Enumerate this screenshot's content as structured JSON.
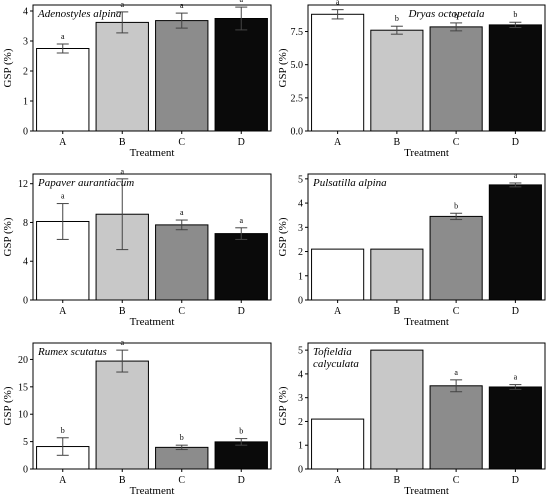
{
  "figure": {
    "colors": {
      "A": "#ffffff",
      "B": "#c8c8c8",
      "C": "#8c8c8c",
      "D": "#0a0a0a"
    }
  },
  "chart_data": [
    {
      "type": "bar",
      "title": "Adenostyles alpina",
      "categories": [
        "A",
        "B",
        "C",
        "D"
      ],
      "values": [
        2.75,
        3.62,
        3.68,
        3.75
      ],
      "errors": [
        0.15,
        0.35,
        0.25,
        0.38
      ],
      "significance": [
        "a",
        "a",
        "a",
        "a"
      ],
      "xlabel": "Treatment",
      "ylabel": "GSP (%)",
      "ylim": [
        0,
        4.2
      ],
      "yticks": [
        0,
        1,
        2,
        3,
        4
      ],
      "legend": "none"
    },
    {
      "type": "bar",
      "title": "Dryas octopetala",
      "categories": [
        "A",
        "B",
        "C",
        "D"
      ],
      "values": [
        8.8,
        7.6,
        7.85,
        8.0
      ],
      "errors": [
        0.35,
        0.3,
        0.3,
        0.2
      ],
      "significance": [
        "a",
        "b",
        "b",
        "b"
      ],
      "xlabel": "Treatment",
      "ylabel": "GSP (%)",
      "ylim": [
        0,
        9.5
      ],
      "yticks": [
        0,
        2.5,
        5.0,
        7.5
      ],
      "yticklabels": [
        "0.0",
        "2.5",
        "5.0",
        "7.5"
      ],
      "legend": "none"
    },
    {
      "type": "bar",
      "title": "Papaver aurantiacum",
      "categories": [
        "A",
        "B",
        "C",
        "D"
      ],
      "values": [
        8.1,
        8.85,
        7.75,
        6.85
      ],
      "errors": [
        1.85,
        3.65,
        0.5,
        0.6
      ],
      "significance": [
        "a",
        "a",
        "a",
        "a"
      ],
      "xlabel": "Treatment",
      "ylabel": "GSP (%)",
      "ylim": [
        0,
        13.0
      ],
      "yticks": [
        0,
        4,
        8,
        12
      ],
      "legend": "none"
    },
    {
      "type": "bar",
      "title": "Pulsatilla alpina",
      "categories": [
        "A",
        "B",
        "C",
        "D"
      ],
      "values": [
        2.1,
        2.1,
        3.45,
        4.75
      ],
      "errors": [
        0,
        0,
        0.13,
        0.08
      ],
      "significance": [
        "",
        "",
        "b",
        "a"
      ],
      "xlabel": "Treatment",
      "ylabel": "GSP (%)",
      "ylim": [
        0,
        5.2
      ],
      "yticks": [
        0,
        1,
        2,
        3,
        4,
        5
      ],
      "legend": "none"
    },
    {
      "type": "bar",
      "title": "Rumex scutatus",
      "categories": [
        "A",
        "B",
        "C",
        "D"
      ],
      "values": [
        4.1,
        19.7,
        3.95,
        4.95
      ],
      "errors": [
        1.6,
        2.0,
        0.4,
        0.6
      ],
      "significance": [
        "b",
        "a",
        "b",
        "b"
      ],
      "xlabel": "Treatment",
      "ylabel": "GSP (%)",
      "ylim": [
        0,
        23.0
      ],
      "yticks": [
        0,
        5,
        10,
        15,
        20
      ],
      "legend": "none"
    },
    {
      "type": "bar",
      "title": "Tofieldia\ncalyculata",
      "categories": [
        "A",
        "B",
        "C",
        "D"
      ],
      "values": [
        2.1,
        5.0,
        3.5,
        3.45
      ],
      "errors": [
        0,
        0,
        0.25,
        0.1
      ],
      "significance": [
        "",
        "",
        "a",
        "a"
      ],
      "xlabel": "Treatment",
      "ylabel": "GSP (%)",
      "ylim": [
        0,
        5.3
      ],
      "yticks": [
        0,
        1,
        2,
        3,
        4,
        5
      ],
      "legend": "none"
    }
  ]
}
